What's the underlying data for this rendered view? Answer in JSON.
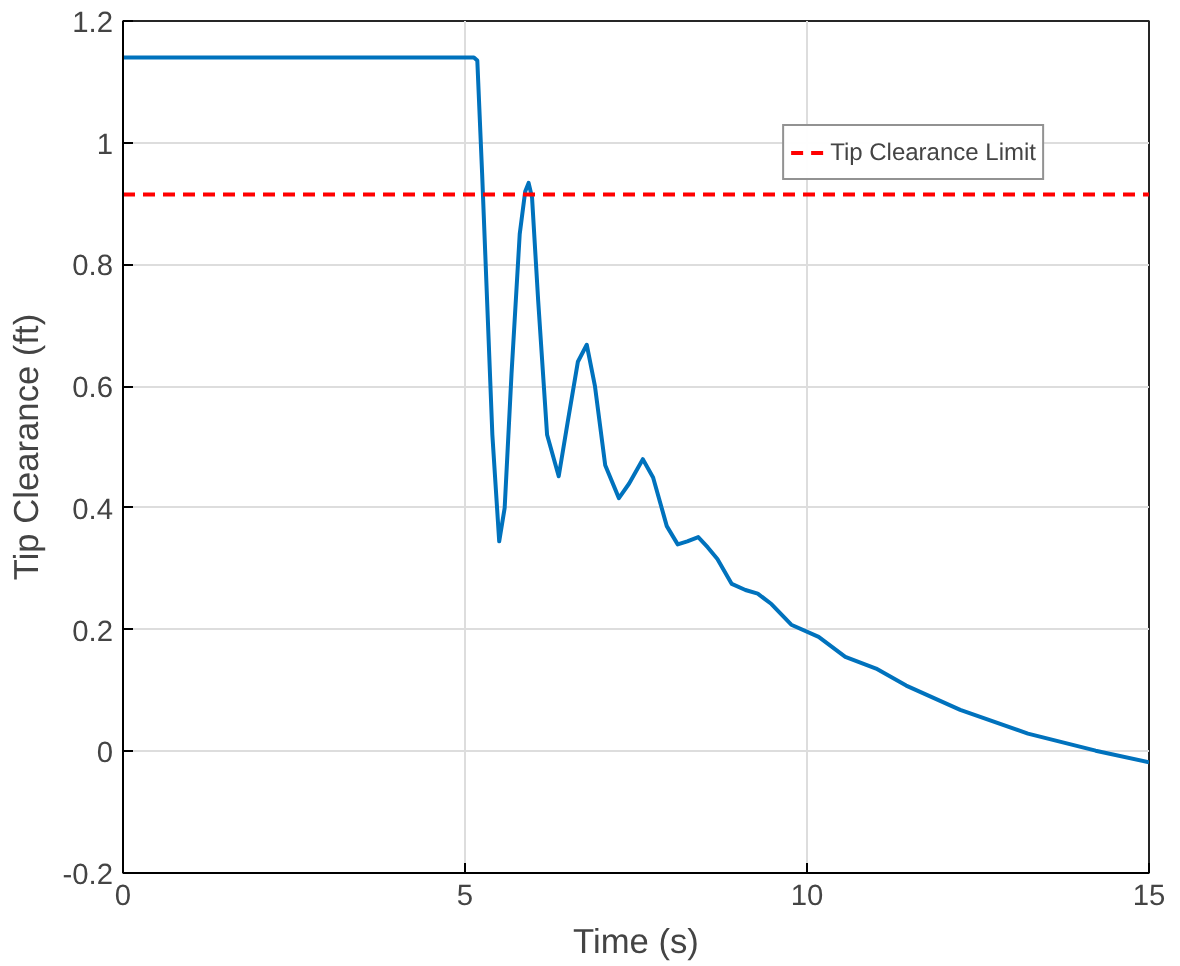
{
  "chart_data": {
    "type": "line",
    "xlabel": "Time (s)",
    "ylabel": "Tip Clearance (ft)",
    "xlim": [
      0,
      15
    ],
    "ylim": [
      -0.2,
      1.2
    ],
    "xticks": [
      0,
      5,
      10,
      15
    ],
    "yticks": [
      -0.2,
      0,
      0.2,
      0.4,
      0.6,
      0.8,
      1,
      1.2
    ],
    "grid": true,
    "legend": "top right",
    "series": [
      {
        "color": "#0072bd",
        "x": [
          0,
          5.13,
          5.18,
          5.25,
          5.4,
          5.5,
          5.58,
          5.68,
          5.8,
          5.88,
          5.93,
          5.98,
          6.07,
          6.2,
          6.37,
          6.5,
          6.65,
          6.78,
          6.9,
          7.05,
          7.25,
          7.4,
          7.6,
          7.75,
          7.95,
          8.11,
          8.25,
          8.41,
          8.55,
          8.69,
          8.9,
          9.1,
          9.28,
          9.48,
          9.77,
          10.17,
          10.56,
          11.01,
          11.45,
          12.24,
          13.23,
          14.22,
          15
        ],
        "values": [
          1.14,
          1.14,
          1.135,
          0.95,
          0.52,
          0.345,
          0.4,
          0.62,
          0.85,
          0.92,
          0.934,
          0.91,
          0.74,
          0.52,
          0.452,
          0.54,
          0.64,
          0.668,
          0.6,
          0.47,
          0.416,
          0.44,
          0.48,
          0.45,
          0.37,
          0.34,
          0.345,
          0.352,
          0.335,
          0.316,
          0.275,
          0.265,
          0.259,
          0.242,
          0.208,
          0.188,
          0.155,
          0.136,
          0.108,
          0.068,
          0.029,
          0.001,
          -0.018
        ]
      }
    ],
    "ref_lines": [
      {
        "axis": "y",
        "value": 0.915,
        "label": "Tip Clearance Limit",
        "color": "#ff0000",
        "line_style": "dashed"
      }
    ]
  }
}
